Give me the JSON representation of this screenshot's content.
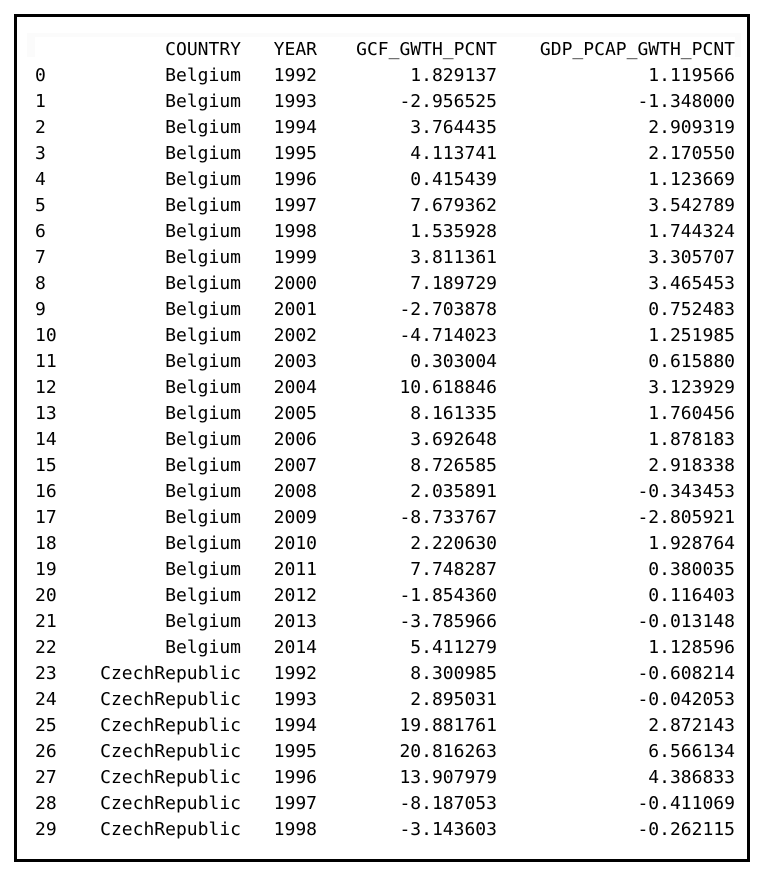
{
  "table": {
    "columns": [
      "",
      "COUNTRY",
      "YEAR",
      "GCF_GWTH_PCNT",
      "GDP_PCAP_GWTH_PCNT"
    ],
    "rows": [
      [
        "0",
        "Belgium",
        "1992",
        "1.829137",
        "1.119566"
      ],
      [
        "1",
        "Belgium",
        "1993",
        "-2.956525",
        "-1.348000"
      ],
      [
        "2",
        "Belgium",
        "1994",
        "3.764435",
        "2.909319"
      ],
      [
        "3",
        "Belgium",
        "1995",
        "4.113741",
        "2.170550"
      ],
      [
        "4",
        "Belgium",
        "1996",
        "0.415439",
        "1.123669"
      ],
      [
        "5",
        "Belgium",
        "1997",
        "7.679362",
        "3.542789"
      ],
      [
        "6",
        "Belgium",
        "1998",
        "1.535928",
        "1.744324"
      ],
      [
        "7",
        "Belgium",
        "1999",
        "3.811361",
        "3.305707"
      ],
      [
        "8",
        "Belgium",
        "2000",
        "7.189729",
        "3.465453"
      ],
      [
        "9",
        "Belgium",
        "2001",
        "-2.703878",
        "0.752483"
      ],
      [
        "10",
        "Belgium",
        "2002",
        "-4.714023",
        "1.251985"
      ],
      [
        "11",
        "Belgium",
        "2003",
        "0.303004",
        "0.615880"
      ],
      [
        "12",
        "Belgium",
        "2004",
        "10.618846",
        "3.123929"
      ],
      [
        "13",
        "Belgium",
        "2005",
        "8.161335",
        "1.760456"
      ],
      [
        "14",
        "Belgium",
        "2006",
        "3.692648",
        "1.878183"
      ],
      [
        "15",
        "Belgium",
        "2007",
        "8.726585",
        "2.918338"
      ],
      [
        "16",
        "Belgium",
        "2008",
        "2.035891",
        "-0.343453"
      ],
      [
        "17",
        "Belgium",
        "2009",
        "-8.733767",
        "-2.805921"
      ],
      [
        "18",
        "Belgium",
        "2010",
        "2.220630",
        "1.928764"
      ],
      [
        "19",
        "Belgium",
        "2011",
        "7.748287",
        "0.380035"
      ],
      [
        "20",
        "Belgium",
        "2012",
        "-1.854360",
        "0.116403"
      ],
      [
        "21",
        "Belgium",
        "2013",
        "-3.785966",
        "-0.013148"
      ],
      [
        "22",
        "Belgium",
        "2014",
        "5.411279",
        "1.128596"
      ],
      [
        "23",
        "CzechRepublic",
        "1992",
        "8.300985",
        "-0.608214"
      ],
      [
        "24",
        "CzechRepublic",
        "1993",
        "2.895031",
        "-0.042053"
      ],
      [
        "25",
        "CzechRepublic",
        "1994",
        "19.881761",
        "2.872143"
      ],
      [
        "26",
        "CzechRepublic",
        "1995",
        "20.816263",
        "6.566134"
      ],
      [
        "27",
        "CzechRepublic",
        "1996",
        "13.907979",
        "4.386833"
      ],
      [
        "28",
        "CzechRepublic",
        "1997",
        "-8.187053",
        "-0.411069"
      ],
      [
        "29",
        "CzechRepublic",
        "1998",
        "-3.143603",
        "-0.262115"
      ]
    ]
  }
}
